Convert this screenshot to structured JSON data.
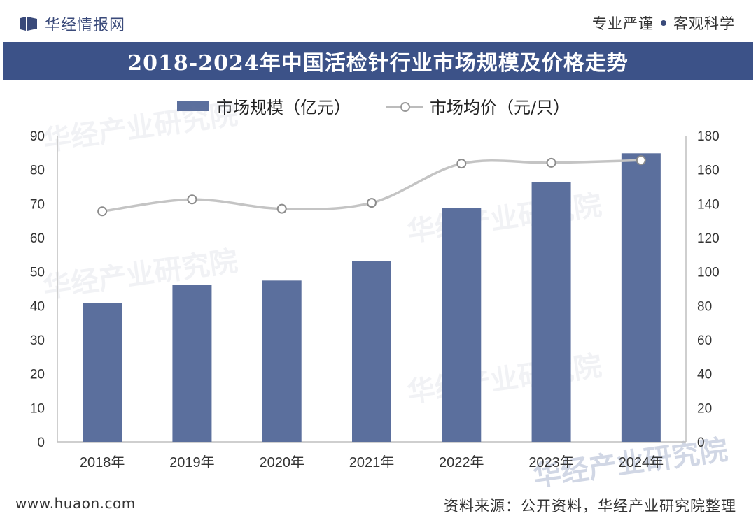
{
  "header": {
    "brand": "华经情报网",
    "slogan_left": "专业严谨",
    "slogan_right": "客观科学"
  },
  "title": "2018-2024年中国活检针行业市场规模及价格走势",
  "watermark_text": "华经产业研究院",
  "footer": {
    "url": "www.huaon.com",
    "source": "资料来源：公开资料，华经产业研究院整理"
  },
  "colors": {
    "bar": "#5b6f9d",
    "line": "#c4c4c4",
    "title_band": "#3c5288"
  },
  "chart_data": {
    "type": "bar+line",
    "categories": [
      "2018年",
      "2019年",
      "2020年",
      "2021年",
      "2022年",
      "2023年",
      "2024年"
    ],
    "series": [
      {
        "name": "市场规模（亿元）",
        "type": "bar",
        "axis": "left",
        "values": [
          40.7,
          46.2,
          47.4,
          53.2,
          68.8,
          76.4,
          84.8
        ]
      },
      {
        "name": "市场均价（元/只）",
        "type": "line",
        "axis": "right",
        "values": [
          135.5,
          142.5,
          137,
          140.5,
          163.5,
          164,
          165.5
        ]
      }
    ],
    "left_axis": {
      "min": 0,
      "max": 90,
      "ticks": [
        "0",
        "10",
        "20",
        "30",
        "40",
        "50",
        "60",
        "70",
        "80",
        "90"
      ]
    },
    "right_axis": {
      "min": 0,
      "max": 180,
      "ticks": [
        "0",
        "20",
        "40",
        "60",
        "80",
        "100",
        "120",
        "140",
        "160",
        "180"
      ]
    }
  }
}
